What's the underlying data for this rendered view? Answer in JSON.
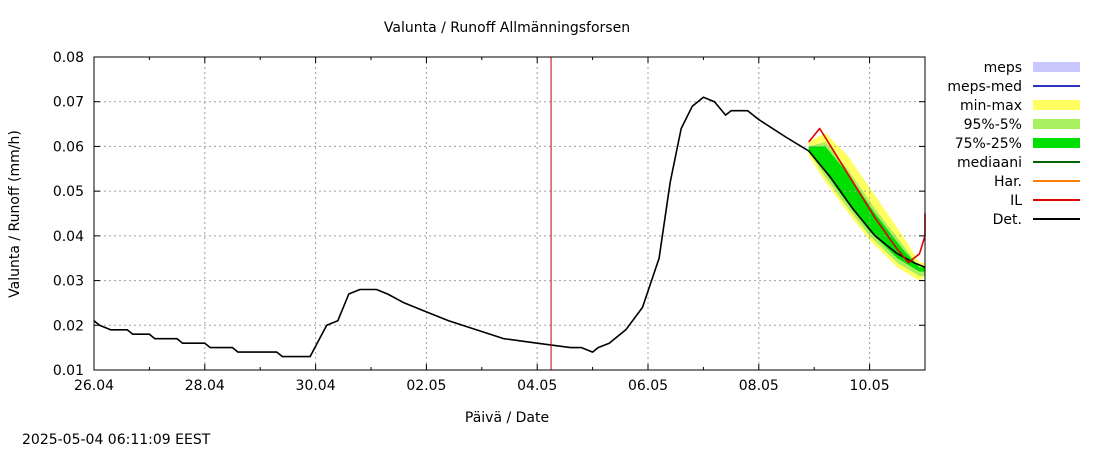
{
  "chart_data": {
    "type": "area",
    "title": "Valunta / Runoff  Allmänningsforsen",
    "xlabel": "Päivä / Date",
    "ylabel": "Valunta / Runoff (mm/h)",
    "timestamp": "2025-05-04 06:11:09 EEST",
    "x_start_day": 26.0,
    "x_range_days": [
      0,
      15
    ],
    "ylim": [
      0.01,
      0.08
    ],
    "y_ticks": [
      "0.01",
      "0.02",
      "0.03",
      "0.04",
      "0.05",
      "0.06",
      "0.07",
      "0.08"
    ],
    "x_ticks": [
      {
        "label": "26.04",
        "day": 0
      },
      {
        "label": "28.04",
        "day": 2
      },
      {
        "label": "30.04",
        "day": 4
      },
      {
        "label": "02.05",
        "day": 6
      },
      {
        "label": "04.05",
        "day": 8
      },
      {
        "label": "06.05",
        "day": 10
      },
      {
        "label": "08.05",
        "day": 12
      },
      {
        "label": "10.05",
        "day": 14
      }
    ],
    "grid": true,
    "forecast_start_day": 8.25,
    "legend": [
      {
        "label": "meps",
        "color": "#c8c8ff",
        "style": "box"
      },
      {
        "label": "meps-med",
        "color": "#3030c0",
        "style": "line"
      },
      {
        "label": "min-max",
        "color": "#ffff60",
        "style": "box"
      },
      {
        "label": "95%-5%",
        "color": "#a8f060",
        "style": "box"
      },
      {
        "label": "75%-25%",
        "color": "#00e000",
        "style": "box"
      },
      {
        "label": "mediaani",
        "color": "#006400",
        "style": "line"
      },
      {
        "label": "Har.",
        "color": "#ff8000",
        "style": "line"
      },
      {
        "label": "IL",
        "color": "#e00000",
        "style": "line"
      },
      {
        "label": "Det.",
        "color": "#000000",
        "style": "line"
      }
    ],
    "series": [
      {
        "name": "Det.",
        "color": "#000000",
        "points": [
          [
            0,
            0.021
          ],
          [
            0.1,
            0.02
          ],
          [
            0.3,
            0.019
          ],
          [
            0.6,
            0.019
          ],
          [
            0.7,
            0.018
          ],
          [
            1.0,
            0.018
          ],
          [
            1.1,
            0.017
          ],
          [
            1.5,
            0.017
          ],
          [
            1.6,
            0.016
          ],
          [
            2.0,
            0.016
          ],
          [
            2.1,
            0.015
          ],
          [
            2.5,
            0.015
          ],
          [
            2.6,
            0.014
          ],
          [
            3.0,
            0.014
          ],
          [
            3.3,
            0.014
          ],
          [
            3.4,
            0.013
          ],
          [
            3.8,
            0.013
          ],
          [
            3.9,
            0.013
          ],
          [
            4.2,
            0.02
          ],
          [
            4.4,
            0.021
          ],
          [
            4.6,
            0.027
          ],
          [
            4.8,
            0.028
          ],
          [
            5.1,
            0.028
          ],
          [
            5.3,
            0.027
          ],
          [
            5.6,
            0.025
          ],
          [
            6.0,
            0.023
          ],
          [
            6.4,
            0.021
          ],
          [
            6.9,
            0.019
          ],
          [
            7.4,
            0.017
          ],
          [
            8.0,
            0.016
          ],
          [
            8.6,
            0.015
          ],
          [
            8.8,
            0.015
          ],
          [
            9.0,
            0.014
          ],
          [
            9.1,
            0.015
          ],
          [
            9.3,
            0.016
          ],
          [
            9.6,
            0.019
          ],
          [
            9.9,
            0.024
          ],
          [
            10.2,
            0.035
          ],
          [
            10.4,
            0.052
          ],
          [
            10.6,
            0.064
          ],
          [
            10.8,
            0.069
          ],
          [
            11.0,
            0.071
          ],
          [
            11.2,
            0.07
          ],
          [
            11.4,
            0.067
          ],
          [
            11.5,
            0.068
          ],
          [
            11.8,
            0.068
          ],
          [
            12.0,
            0.066
          ],
          [
            12.5,
            0.062
          ],
          [
            12.9,
            0.059
          ],
          [
            13.3,
            0.053
          ],
          [
            13.7,
            0.046
          ],
          [
            14.1,
            0.04
          ],
          [
            14.5,
            0.036
          ],
          [
            14.8,
            0.034
          ],
          [
            15.0,
            0.033
          ]
        ]
      },
      {
        "name": "IL",
        "color": "#e00000",
        "points": [
          [
            12.9,
            0.061
          ],
          [
            13.1,
            0.064
          ],
          [
            13.3,
            0.06
          ],
          [
            13.7,
            0.052
          ],
          [
            14.1,
            0.044
          ],
          [
            14.5,
            0.037
          ],
          [
            14.7,
            0.034
          ],
          [
            14.9,
            0.036
          ],
          [
            15.0,
            0.04
          ],
          [
            15.0,
            0.045
          ]
        ]
      }
    ]
  }
}
